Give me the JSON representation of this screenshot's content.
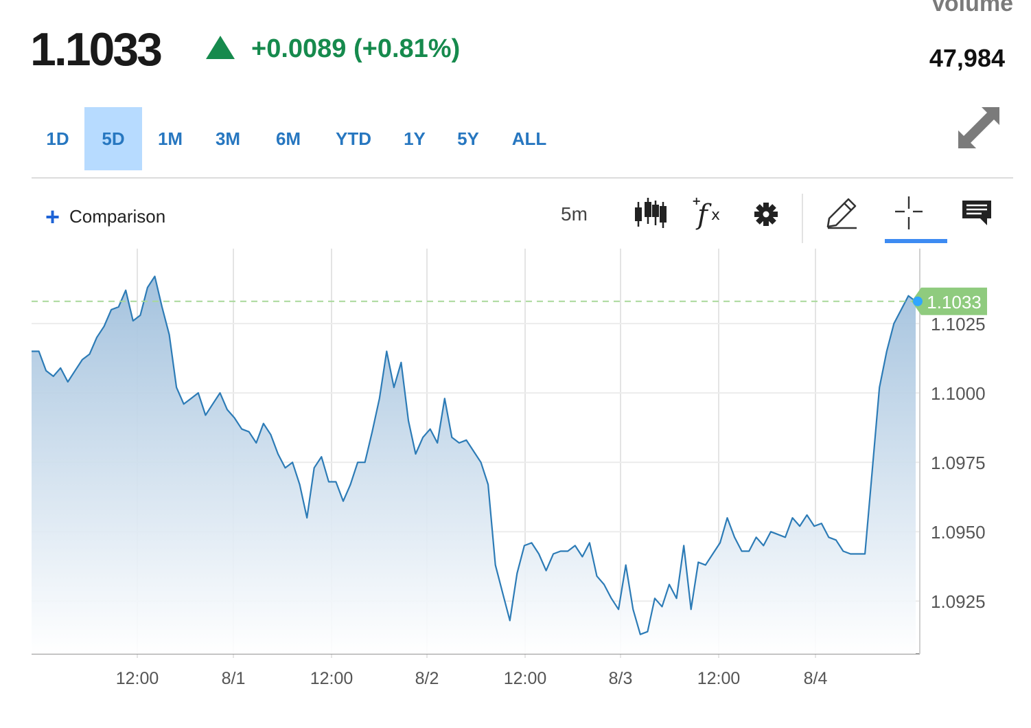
{
  "quote": {
    "price": "1.1033",
    "change": "+0.0089 (+0.81%)",
    "volume_label": "Volume",
    "volume_value": "47,984"
  },
  "range_tabs": [
    {
      "label": "1D",
      "active": false
    },
    {
      "label": "5D",
      "active": true
    },
    {
      "label": "1M",
      "active": false
    },
    {
      "label": "3M",
      "active": false
    },
    {
      "label": "6M",
      "active": false
    },
    {
      "label": "YTD",
      "active": false
    },
    {
      "label": "1Y",
      "active": false
    },
    {
      "label": "5Y",
      "active": false
    },
    {
      "label": "ALL",
      "active": false
    }
  ],
  "toolbar": {
    "comparison_label": "Comparison",
    "interval": "5m",
    "tools": [
      "candlestick-icon",
      "indicators-fx-icon",
      "gear-icon",
      "pencil-icon",
      "crosshair-icon",
      "comment-icon"
    ],
    "active_tool": "crosshair-icon"
  },
  "colors": {
    "accent": "#2777c0",
    "up": "#168a4d",
    "line": "#2c7bb6",
    "last_price_tag": "#8fcb7e"
  },
  "chart_data": {
    "type": "area",
    "x_tick_labels": [
      "12:00",
      "8/1",
      "12:00",
      "8/2",
      "12:00",
      "8/3",
      "12:00",
      "8/4"
    ],
    "y_tick_labels": [
      "1.1025",
      "1.1000",
      "1.0975",
      "1.0950",
      "1.0925"
    ],
    "y_ticks": [
      1.1025,
      1.1,
      1.0975,
      1.095,
      1.0925
    ],
    "ylim": [
      1.0906,
      1.1052
    ],
    "last_price": 1.1033,
    "last_price_label": "1.1033",
    "grid": true,
    "series": [
      {
        "values": [
          1.1015,
          1.1015,
          1.1008,
          1.1006,
          1.1009,
          1.1004,
          1.1008,
          1.1012,
          1.1014,
          1.102,
          1.1024,
          1.103,
          1.1031,
          1.1037,
          1.1026,
          1.1028,
          1.1038,
          1.1042,
          1.1031,
          1.1021,
          1.1002,
          1.0996,
          1.0998,
          1.1,
          1.0992,
          1.0996,
          1.1,
          1.0994,
          1.0991,
          1.0987,
          1.0986,
          1.0982,
          1.0989,
          1.0985,
          1.0978,
          1.0973,
          1.0975,
          1.0967,
          1.0955,
          1.0973,
          1.0977,
          1.0968,
          1.0968,
          1.0961,
          1.0967,
          1.0975,
          1.0975,
          1.0986,
          1.0998,
          1.1015,
          1.1002,
          1.1011,
          1.099,
          1.0978,
          1.0984,
          1.0987,
          1.0982,
          1.0998,
          1.0984,
          1.0982,
          1.0983,
          1.0979,
          1.0975,
          1.0967,
          1.0938,
          1.0928,
          1.0918,
          1.0935,
          1.0945,
          1.0946,
          1.0942,
          1.0936,
          1.0942,
          1.0943,
          1.0943,
          1.0945,
          1.0941,
          1.0946,
          1.0934,
          1.0931,
          1.0926,
          1.0922,
          1.0938,
          1.0922,
          1.0913,
          1.0914,
          1.0926,
          1.0923,
          1.0931,
          1.0926,
          1.0945,
          1.0922,
          1.0939,
          1.0938,
          1.0942,
          1.0946,
          1.0955,
          1.0948,
          1.0943,
          1.0943,
          1.0948,
          1.0945,
          1.095,
          1.0949,
          1.0948,
          1.0955,
          1.0952,
          1.0956,
          1.0952,
          1.0953,
          1.0948,
          1.0947,
          1.0943,
          1.0942,
          1.0942,
          1.0942,
          1.0972,
          1.1002,
          1.1015,
          1.1025,
          1.103,
          1.1035,
          1.1033
        ]
      }
    ]
  }
}
